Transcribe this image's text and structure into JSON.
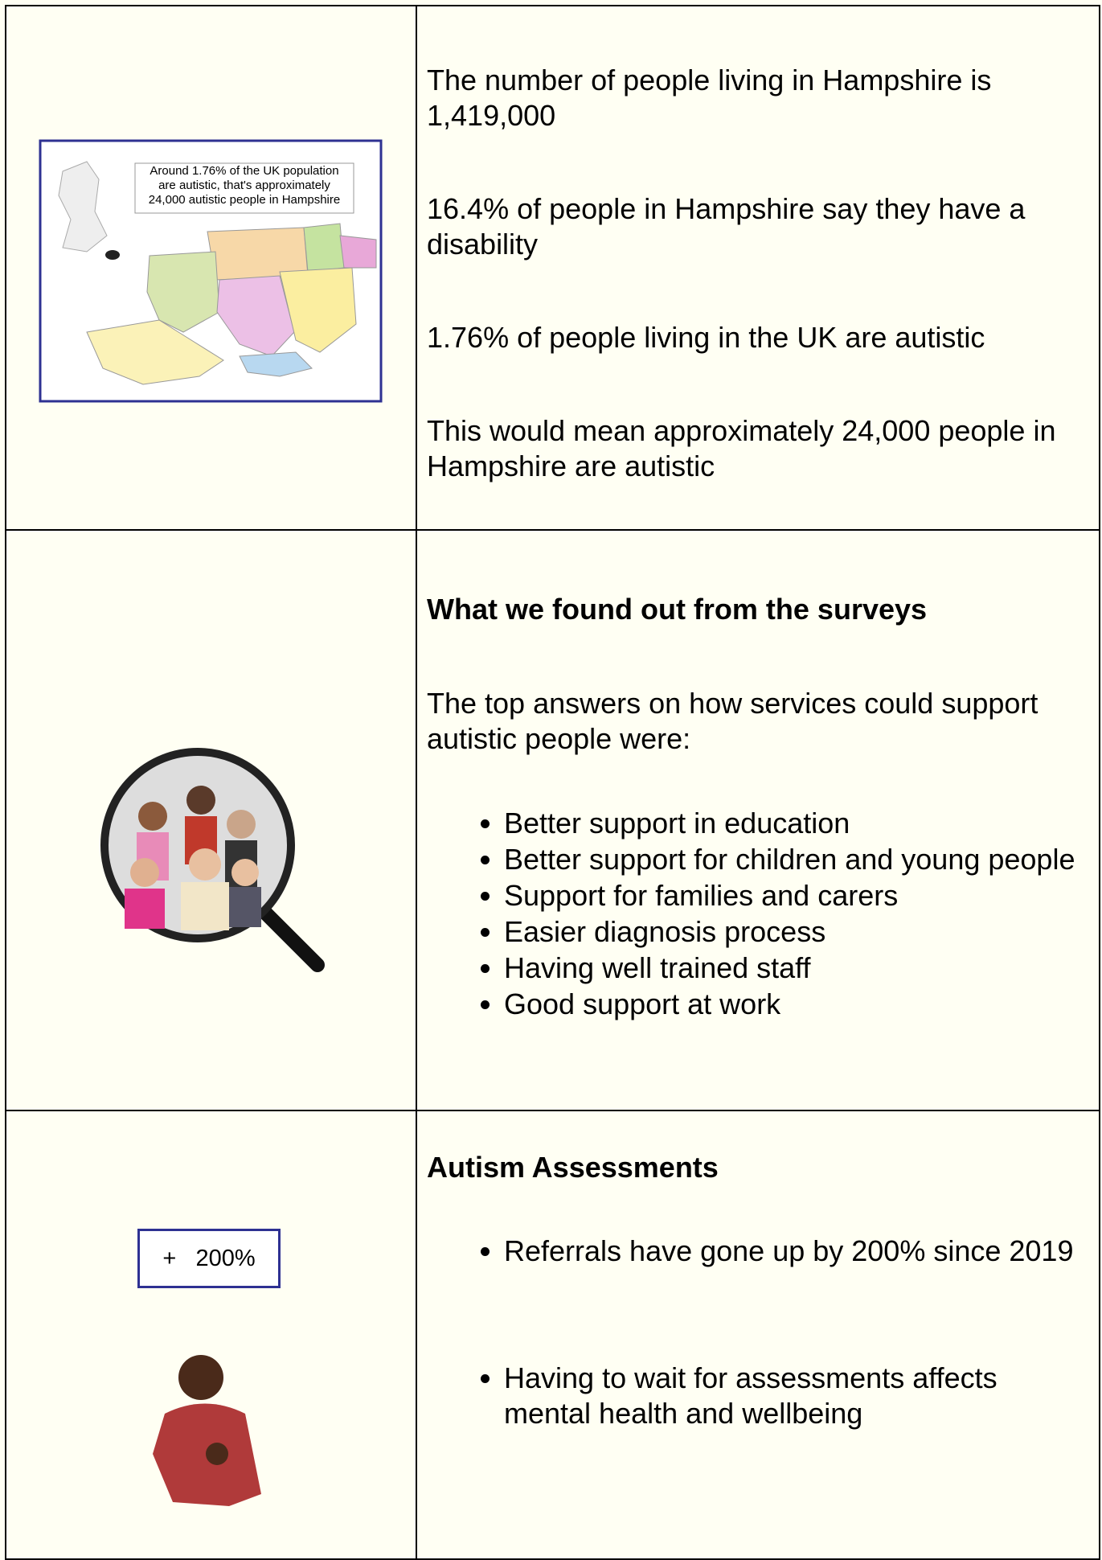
{
  "rows": [
    {
      "image": {
        "caption": [
          "Around 1.76% of the UK population",
          "are autistic, that's approximately",
          "24,000 autistic people in Hampshire"
        ]
      },
      "paragraphs": [
        "The number of people living in Hampshire is 1,419,000",
        "16.4% of people in Hampshire say they have a disability",
        "1.76% of people living in the UK are autistic",
        "This would mean approximately 24,000 people in Hampshire are autistic"
      ]
    },
    {
      "heading": "What we found out from the surveys",
      "intro": "The top answers on how services could support autistic people were:",
      "bullets": [
        "Better support in education",
        "Better support for children and young people",
        "Support for families and carers",
        "Easier diagnosis process",
        "Having well trained staff",
        "Good support at work"
      ]
    },
    {
      "image": {
        "box_label": "+   200%"
      },
      "heading": "Autism Assessments",
      "bullets": [
        "Referrals have gone up by 200% since 2019",
        "Having to wait for assessments affects mental health and wellbeing"
      ]
    }
  ]
}
